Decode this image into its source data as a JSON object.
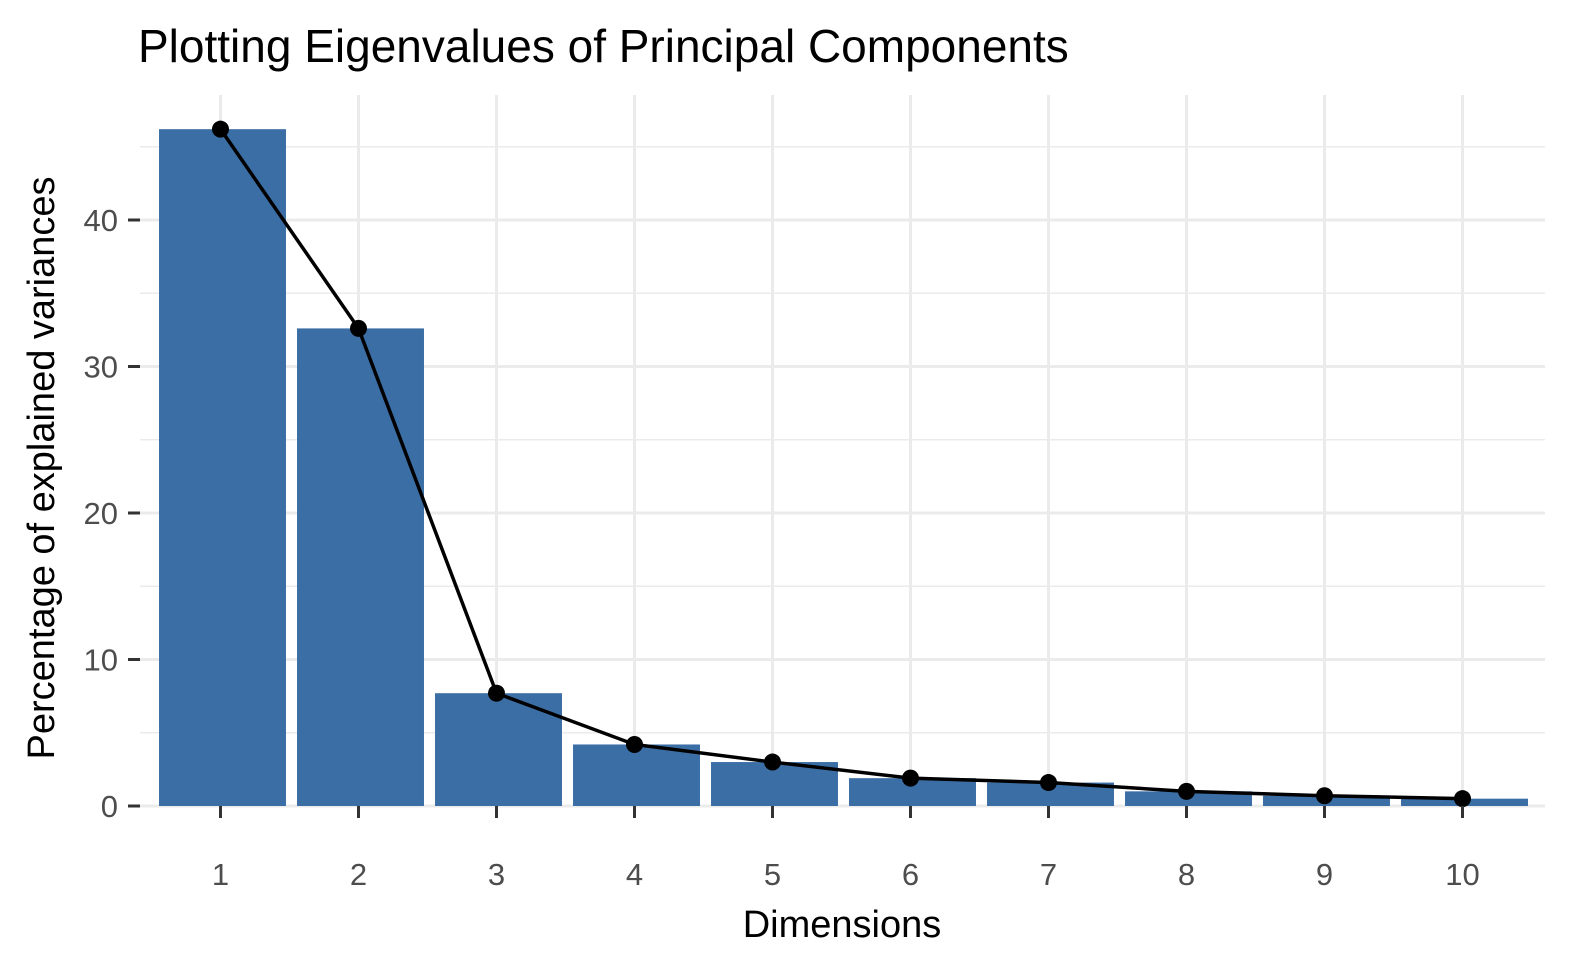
{
  "chart_data": {
    "type": "bar",
    "title": "Plotting Eigenvalues of Principal Components",
    "xlabel": "Dimensions",
    "ylabel": "Percentage of explained variances",
    "categories": [
      "1",
      "2",
      "3",
      "4",
      "5",
      "6",
      "7",
      "8",
      "9",
      "10"
    ],
    "values": [
      46.2,
      32.6,
      7.7,
      4.2,
      3.0,
      1.9,
      1.6,
      1.0,
      0.7,
      0.5
    ],
    "y_ticks": [
      0,
      10,
      20,
      30,
      40
    ],
    "y_tick_labels": [
      "0",
      "10",
      "20",
      "30",
      "40"
    ],
    "ylim": [
      0,
      48.5
    ],
    "grid": true,
    "legend": "none",
    "bar_color": "#3B6EA5",
    "line_color": "#000000",
    "overlay": "line with points at each bar value"
  }
}
